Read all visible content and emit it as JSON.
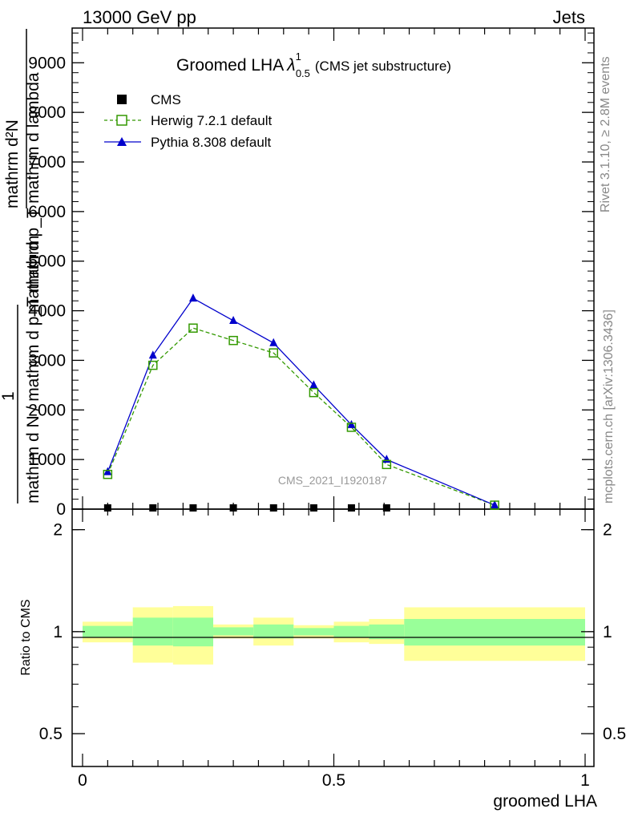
{
  "header": {
    "left": "13000 GeV pp",
    "right": "Jets"
  },
  "side_labels": {
    "rivet": "Rivet 3.1.10, ≥ 2.8M events",
    "mcplots": "mcplots.cern.ch [arXiv:1306.3436]"
  },
  "watermark": "CMS_2021_I1920187",
  "colors": {
    "cms": "#000000",
    "herwig": "#339900",
    "pythia": "#0000cc",
    "band_inner": "#99ff99",
    "band_outer": "#ffff99"
  },
  "chart_data": [
    {
      "panel": "main",
      "type": "line",
      "title_main": "Groomed LHA",
      "title_symbol": "λ",
      "title_sup": "1",
      "title_sub": "0.5",
      "title_note": "(CMS jet substructure)",
      "ylabel_lines": [
        "mathrm d²N",
        "mathrm d p_T mathrm d lambda"
      ],
      "ylabel_prefix": "1",
      "ylabel_denominator": "mathrm d N / mathrm d p_T mathrm",
      "xlim": [
        0,
        1
      ],
      "ylim": [
        0,
        9700
      ],
      "yticks": [
        0,
        1000,
        2000,
        3000,
        4000,
        5000,
        6000,
        7000,
        8000,
        9000
      ],
      "ytick_labels": [
        "0",
        "1000",
        "2000",
        "3000",
        "4000",
        "5000",
        "6000",
        "7000",
        "8000",
        "9000"
      ],
      "legend_position": "top-left",
      "series": [
        {
          "name": "CMS",
          "marker": "square-filled",
          "x": [
            0.05,
            0.14,
            0.22,
            0.3,
            0.38,
            0.46,
            0.535,
            0.605
          ],
          "y": [
            0,
            0,
            0,
            0,
            0,
            0,
            0,
            0
          ]
        },
        {
          "name": "Herwig 7.2.1 default",
          "marker": "square-open",
          "style": "dashed",
          "x": [
            0.05,
            0.14,
            0.22,
            0.3,
            0.38,
            0.46,
            0.535,
            0.605,
            0.82
          ],
          "y": [
            700,
            2900,
            3650,
            3400,
            3150,
            2350,
            1650,
            900,
            80
          ]
        },
        {
          "name": "Pythia 8.308 default",
          "marker": "triangle-filled",
          "style": "solid",
          "x": [
            0.05,
            0.14,
            0.22,
            0.3,
            0.38,
            0.46,
            0.535,
            0.605,
            0.82
          ],
          "y": [
            750,
            3100,
            4250,
            3800,
            3350,
            2500,
            1700,
            1000,
            80
          ]
        }
      ]
    },
    {
      "panel": "ratio",
      "type": "area",
      "ylabel": "Ratio to CMS",
      "xlabel": "groomed LHA",
      "xlim": [
        0,
        1
      ],
      "ylim": [
        0.4,
        2.3
      ],
      "log_y": true,
      "xticks": [
        0,
        0.5,
        1
      ],
      "xtick_labels": [
        "0",
        "0.5",
        "1"
      ],
      "yticks": [
        0.5,
        1,
        2
      ],
      "ytick_labels": [
        "0.5",
        "1",
        "2"
      ],
      "bins": [
        {
          "lo": 0.0,
          "hi": 0.1,
          "inner": [
            0.96,
            1.04
          ],
          "outer": [
            0.93,
            1.07
          ]
        },
        {
          "lo": 0.1,
          "hi": 0.18,
          "inner": [
            0.91,
            1.1
          ],
          "outer": [
            0.81,
            1.18
          ]
        },
        {
          "lo": 0.18,
          "hi": 0.26,
          "inner": [
            0.905,
            1.1
          ],
          "outer": [
            0.8,
            1.19
          ]
        },
        {
          "lo": 0.26,
          "hi": 0.34,
          "inner": [
            0.975,
            1.03
          ],
          "outer": [
            0.955,
            1.05
          ]
        },
        {
          "lo": 0.34,
          "hi": 0.42,
          "inner": [
            0.955,
            1.05
          ],
          "outer": [
            0.91,
            1.1
          ]
        },
        {
          "lo": 0.42,
          "hi": 0.5,
          "inner": [
            0.975,
            1.025
          ],
          "outer": [
            0.955,
            1.045
          ]
        },
        {
          "lo": 0.5,
          "hi": 0.57,
          "inner": [
            0.96,
            1.04
          ],
          "outer": [
            0.93,
            1.07
          ]
        },
        {
          "lo": 0.57,
          "hi": 0.64,
          "inner": [
            0.95,
            1.05
          ],
          "outer": [
            0.92,
            1.09
          ]
        },
        {
          "lo": 0.64,
          "hi": 1.0,
          "inner": [
            0.91,
            1.09
          ],
          "outer": [
            0.82,
            1.18
          ]
        }
      ]
    }
  ]
}
